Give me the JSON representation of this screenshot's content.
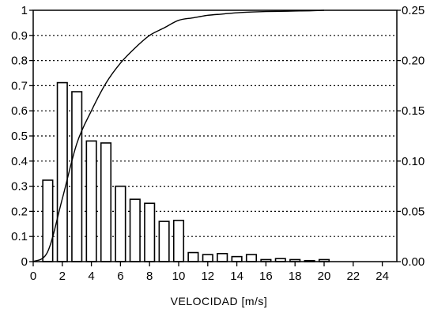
{
  "chart_data": {
    "type": "bar",
    "title": "",
    "xlabel": "VELOCIDAD [m/s]",
    "ylabel": "",
    "y2label": "",
    "grid": true,
    "xlim": [
      0,
      25
    ],
    "ylim": [
      0,
      1
    ],
    "y2lim": [
      0,
      0.25
    ],
    "x_ticks": [
      "0",
      "2",
      "4",
      "6",
      "8",
      "10",
      "12",
      "14",
      "16",
      "18",
      "20",
      "22",
      "24"
    ],
    "y_ticks": [
      "0",
      "0.1",
      "0.2",
      "0.3",
      "0.4",
      "0.5",
      "0.6",
      "0.7",
      "0.8",
      "0.9",
      "1"
    ],
    "y2_ticks": [
      "0.00",
      "0.05",
      "0.10",
      "0.15",
      "0.20",
      "0.25"
    ],
    "series": [
      {
        "kind": "bar",
        "axis": "right",
        "x": [
          1,
          2,
          3,
          4,
          5,
          6,
          7,
          8,
          9,
          10,
          11,
          12,
          13,
          14,
          15,
          16,
          17,
          18,
          19,
          20
        ],
        "values": [
          0.081,
          0.178,
          0.169,
          0.12,
          0.118,
          0.075,
          0.062,
          0.058,
          0.04,
          0.041,
          0.009,
          0.007,
          0.008,
          0.005,
          0.007,
          0.002,
          0.003,
          0.002,
          0.001,
          0.002
        ]
      },
      {
        "kind": "line",
        "axis": "left",
        "x": [
          0,
          1,
          2,
          3,
          4,
          5,
          6,
          7,
          8,
          9,
          10,
          11,
          12,
          13,
          14,
          15,
          16,
          17,
          18,
          19,
          20
        ],
        "values": [
          0,
          0.04,
          0.25,
          0.47,
          0.6,
          0.71,
          0.79,
          0.85,
          0.9,
          0.93,
          0.96,
          0.97,
          0.98,
          0.985,
          0.99,
          0.993,
          0.995,
          0.996,
          0.997,
          0.998,
          1.0
        ]
      }
    ]
  }
}
